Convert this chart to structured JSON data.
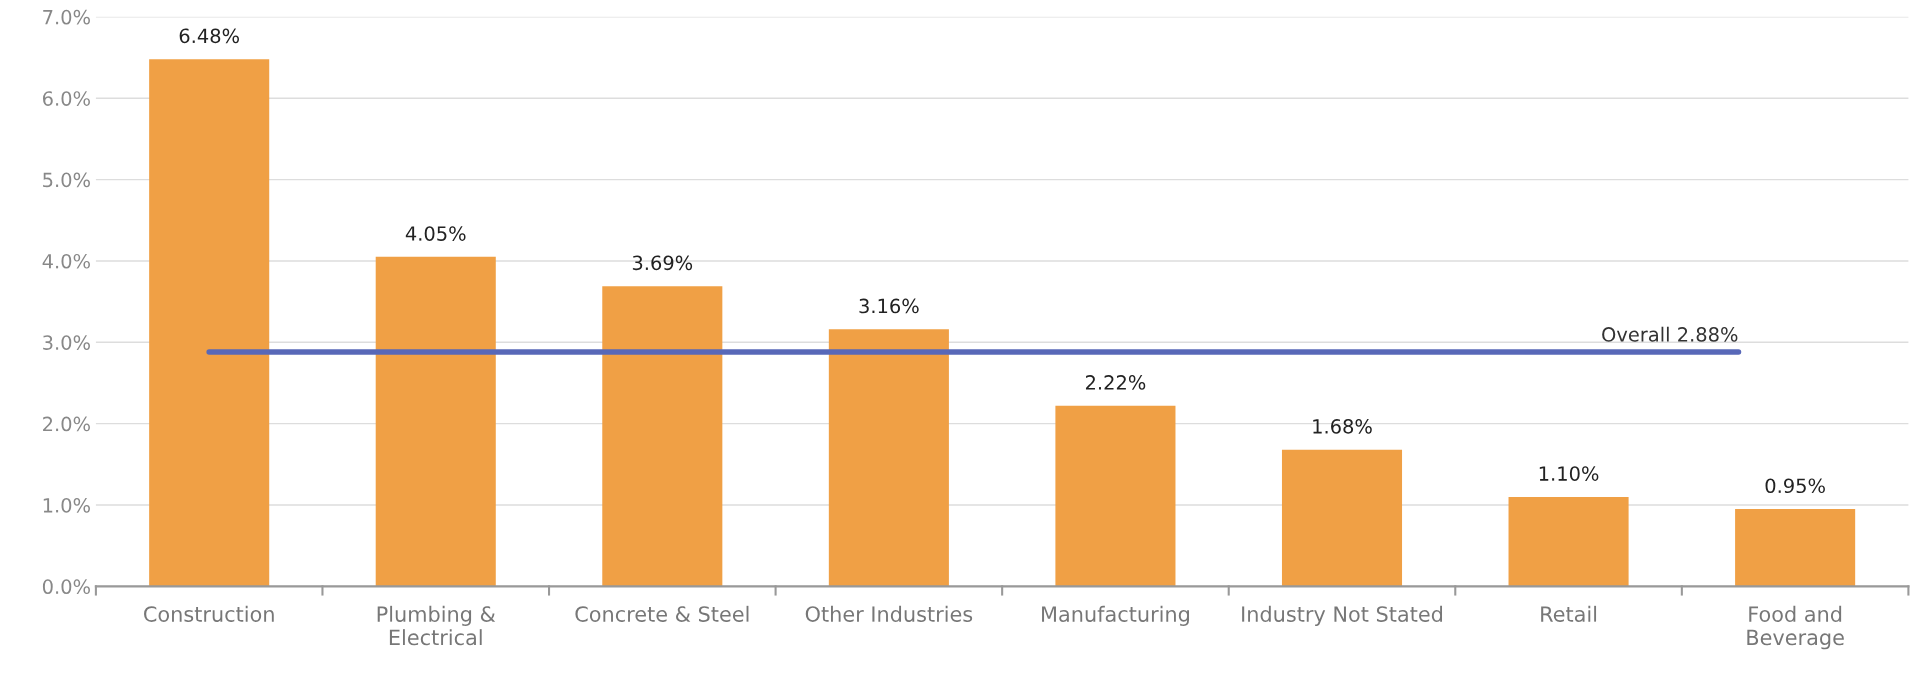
{
  "chart_data": {
    "type": "bar",
    "categories": [
      "Construction",
      "Plumbing &\nElectrical",
      "Concrete & Steel",
      "Other Industries",
      "Manufacturing",
      "Industry Not Stated",
      "Retail",
      "Food and\nBeverage"
    ],
    "values": [
      6.48,
      4.05,
      3.69,
      3.16,
      2.22,
      1.68,
      1.1,
      0.95
    ],
    "value_labels": [
      "6.48%",
      "4.05%",
      "3.69%",
      "3.16%",
      "2.22%",
      "1.68%",
      "1.10%",
      "0.95%"
    ],
    "color": "#f0a045",
    "ylim": [
      0,
      7
    ],
    "yticks": [
      {
        "value": 0,
        "label": "0.0%"
      },
      {
        "value": 1,
        "label": "1.0%"
      },
      {
        "value": 2,
        "label": "2.0%"
      },
      {
        "value": 3,
        "label": "3.0%"
      },
      {
        "value": 4,
        "label": "4.0%"
      },
      {
        "value": 5,
        "label": "5.0%"
      },
      {
        "value": 6,
        "label": "6.0%"
      },
      {
        "value": 7,
        "label": "7.0%"
      }
    ],
    "ref_lines": [
      {
        "axis": "y",
        "value": 2.88,
        "label": "Overall 2.88%",
        "color": "#5868b8",
        "line_style": "solid"
      }
    ],
    "grid": "y"
  }
}
